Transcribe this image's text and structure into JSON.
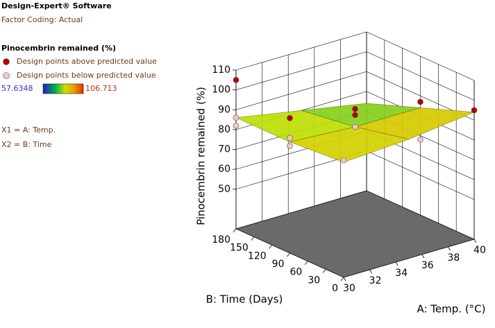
{
  "sidebar": {
    "software": "Design-Expert® Software",
    "coding": "Factor Coding: Actual",
    "response": "Pinocembrin remained (%)",
    "x1": "X1 = A: Temp.",
    "x2": "X2 = B: Time"
  },
  "chart_data": {
    "type": "surface3d",
    "xlabel": "A: Temp. (°C)",
    "ylabel": "B: Time (Days)",
    "zlabel": "Pinocembrin remained (%)",
    "xlim": [
      30,
      40
    ],
    "xticks": [
      30,
      32,
      34,
      36,
      38,
      40
    ],
    "ylim": [
      0,
      180
    ],
    "yticks": [
      0,
      30,
      60,
      90,
      120,
      150,
      180
    ],
    "zlim": [
      30,
      110
    ],
    "zticks": [
      50,
      60,
      70,
      80,
      90,
      100,
      110
    ],
    "grid": true,
    "colorbar": {
      "min": 57.6348,
      "max": 106.713
    },
    "surface": {
      "x": [
        30,
        35,
        40
      ],
      "y": [
        0,
        90,
        180
      ],
      "z": [
        [
          88,
          90,
          94
        ],
        [
          86,
          84,
          84
        ],
        [
          86,
          80,
          74
        ]
      ]
    },
    "series": [
      {
        "name": "Design points above predicted value",
        "color": "#b00000",
        "x": [
          30,
          30,
          35,
          35,
          40,
          40
        ],
        "y": [
          180,
          90,
          90,
          90,
          90,
          0
        ],
        "z": [
          105,
          98,
          93,
          90,
          87,
          95
        ]
      },
      {
        "name": "Design points below predicted value",
        "color": "#f6c4c4",
        "x": [
          30,
          30,
          30,
          30,
          35,
          40,
          30
        ],
        "y": [
          180,
          180,
          90,
          90,
          90,
          90,
          0
        ],
        "z": [
          86,
          82,
          88,
          84,
          84,
          68,
          89
        ]
      }
    ]
  }
}
